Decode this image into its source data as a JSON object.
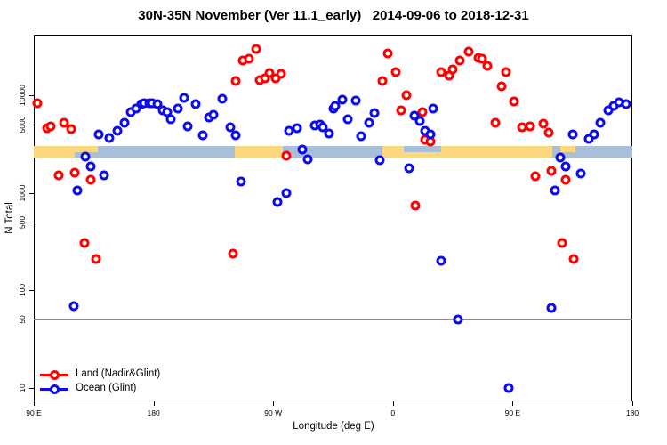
{
  "chart_data": {
    "type": "scatter",
    "title": "30N-35N November (Ver 11.1_early)   2014-09-06 to 2018-12-31",
    "xlabel": "Longitude (deg E)",
    "ylabel": "N Total",
    "x_axis": {
      "lim": [
        90,
        540
      ],
      "ticks": [
        {
          "value": 90,
          "label": "90 E"
        },
        {
          "value": 180,
          "label": "180"
        },
        {
          "value": 270,
          "label": "90 W"
        },
        {
          "value": 360,
          "label": "0"
        },
        {
          "value": 450,
          "label": "90 E"
        },
        {
          "value": 540,
          "label": "180"
        }
      ]
    },
    "y_axis": {
      "scale": "log",
      "lim": [
        7.3,
        42000
      ],
      "ticks": [
        {
          "value": 10,
          "label": "10"
        },
        {
          "value": 50,
          "label": "50"
        },
        {
          "value": 100,
          "label": "100"
        },
        {
          "value": 500,
          "label": "500"
        },
        {
          "value": 1000,
          "label": "1000"
        },
        {
          "value": 5000,
          "label": "5000"
        },
        {
          "value": 10000,
          "label": "10000"
        }
      ]
    },
    "reference_line": {
      "value": 50
    },
    "colors": {
      "land": "#FF0000",
      "ocean": "#0B0BEE",
      "band_land": "#FBD87E",
      "band_ocean": "#A9BFD9",
      "ref_line": "#8C8C8C"
    },
    "geo_band": {
      "n_range": [
        2310,
        3030
      ],
      "segments": [
        {
          "lon": [
            90,
            121
          ],
          "surface": "land",
          "part": "full"
        },
        {
          "lon": [
            121,
            241
          ],
          "surface": "ocean",
          "part": "full"
        },
        {
          "lon": [
            241,
            277
          ],
          "surface": "land",
          "part": "full"
        },
        {
          "lon": [
            277,
            352
          ],
          "surface": "ocean",
          "part": "full"
        },
        {
          "lon": [
            352,
            480
          ],
          "surface": "land",
          "part": "full"
        },
        {
          "lon": [
            480,
            540
          ],
          "surface": "ocean",
          "part": "full"
        },
        {
          "lon": [
            121,
            138
          ],
          "surface": "land",
          "part": "top"
        },
        {
          "lon": [
            368,
            396
          ],
          "surface": "ocean",
          "part": "top"
        },
        {
          "lon": [
            486,
            497
          ],
          "surface": "land",
          "part": "top"
        }
      ]
    },
    "legend": {
      "position": "bottom-left"
    },
    "series": [
      {
        "name": "Land (Nadir&Glint)",
        "color": "#FF0000",
        "points": [
          [
            93,
            8400
          ],
          [
            100,
            4600
          ],
          [
            103,
            4800
          ],
          [
            113,
            5200
          ],
          [
            118,
            4500
          ],
          [
            109,
            1530
          ],
          [
            121,
            1630
          ],
          [
            133,
            1380
          ],
          [
            128,
            305
          ],
          [
            137,
            210
          ],
          [
            240,
            240
          ],
          [
            242,
            14000
          ],
          [
            247,
            23000
          ],
          [
            252,
            24000
          ],
          [
            257,
            30000
          ],
          [
            260,
            14500
          ],
          [
            264,
            15000
          ],
          [
            267,
            17000
          ],
          [
            272,
            15000
          ],
          [
            276,
            16500
          ],
          [
            280,
            2400
          ],
          [
            352,
            14000
          ],
          [
            356,
            27000
          ],
          [
            362,
            17500
          ],
          [
            366,
            7000
          ],
          [
            370,
            10000
          ],
          [
            377,
            750
          ],
          [
            382,
            6700
          ],
          [
            384,
            3500
          ],
          [
            388,
            3400
          ],
          [
            396,
            17500
          ],
          [
            402,
            16000
          ],
          [
            405,
            18700
          ],
          [
            410,
            23000
          ],
          [
            417,
            28000
          ],
          [
            424,
            24500
          ],
          [
            427,
            24000
          ],
          [
            431,
            20000
          ],
          [
            437,
            5200
          ],
          [
            442,
            12300
          ],
          [
            445,
            17200
          ],
          [
            451,
            8600
          ],
          [
            457,
            4700
          ],
          [
            463,
            4800
          ],
          [
            467,
            1500
          ],
          [
            473,
            5100
          ],
          [
            477,
            4200
          ],
          [
            479,
            1670
          ],
          [
            487,
            305
          ],
          [
            490,
            1380
          ],
          [
            496,
            210
          ]
        ]
      },
      {
        "name": "Ocean (Glint)",
        "color": "#0B0BEE",
        "points": [
          [
            120,
            69
          ],
          [
            123,
            1070
          ],
          [
            129,
            2340
          ],
          [
            133,
            1890
          ],
          [
            139,
            4000
          ],
          [
            143,
            1530
          ],
          [
            147,
            3700
          ],
          [
            153,
            4300
          ],
          [
            158,
            5300
          ],
          [
            163,
            6800
          ],
          [
            167,
            7400
          ],
          [
            171,
            8100
          ],
          [
            173,
            8300
          ],
          [
            177,
            8300
          ],
          [
            179,
            8300
          ],
          [
            183,
            8100
          ],
          [
            187,
            7000
          ],
          [
            190,
            6700
          ],
          [
            193,
            5700
          ],
          [
            198,
            7300
          ],
          [
            203,
            9400
          ],
          [
            206,
            4800
          ],
          [
            212,
            8100
          ],
          [
            217,
            3900
          ],
          [
            222,
            6000
          ],
          [
            225,
            6300
          ],
          [
            232,
            9200
          ],
          [
            238,
            4700
          ],
          [
            242,
            3900
          ],
          [
            246,
            1320
          ],
          [
            273,
            800
          ],
          [
            280,
            990
          ],
          [
            282,
            4300
          ],
          [
            288,
            4600
          ],
          [
            292,
            2820
          ],
          [
            296,
            2200
          ],
          [
            301,
            4900
          ],
          [
            305,
            5000
          ],
          [
            307,
            4700
          ],
          [
            312,
            4100
          ],
          [
            315,
            7400
          ],
          [
            317,
            7800
          ],
          [
            322,
            9000
          ],
          [
            326,
            5700
          ],
          [
            332,
            8800
          ],
          [
            336,
            3800
          ],
          [
            342,
            5300
          ],
          [
            346,
            6600
          ],
          [
            350,
            2150
          ],
          [
            372,
            1780
          ],
          [
            376,
            6200
          ],
          [
            380,
            5500
          ],
          [
            384,
            4300
          ],
          [
            388,
            4000
          ],
          [
            390,
            7300
          ],
          [
            396,
            200
          ],
          [
            409,
            50
          ],
          [
            447,
            10
          ],
          [
            479,
            67
          ],
          [
            482,
            1070
          ],
          [
            486,
            2300
          ],
          [
            490,
            1890
          ],
          [
            495,
            4000
          ],
          [
            501,
            1600
          ],
          [
            507,
            3600
          ],
          [
            511,
            4000
          ],
          [
            516,
            5300
          ],
          [
            522,
            7000
          ],
          [
            526,
            7800
          ],
          [
            530,
            8500
          ],
          [
            535,
            8100
          ]
        ]
      }
    ]
  }
}
